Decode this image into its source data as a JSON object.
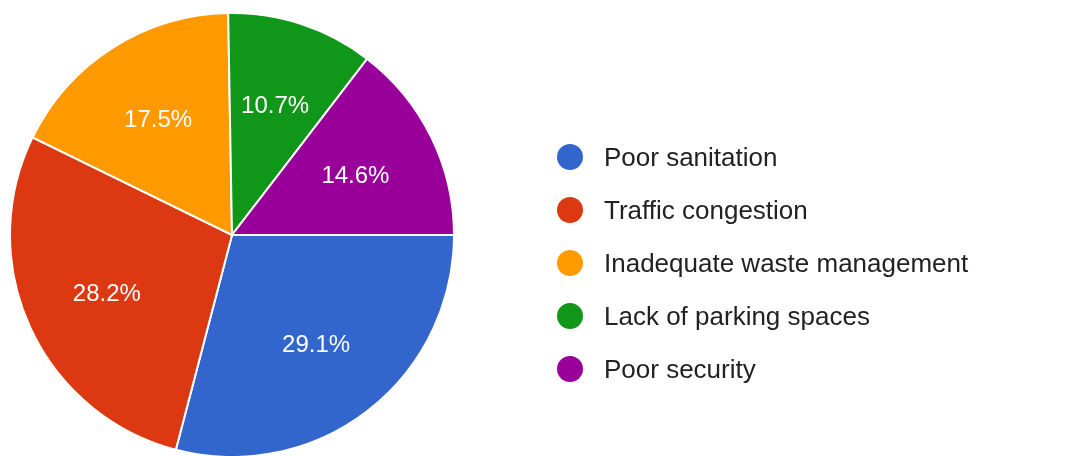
{
  "chart_data": {
    "type": "pie",
    "categories": [
      "Poor sanitation",
      "Traffic congestion",
      "Inadequate waste management",
      "Lack of parking spaces",
      "Poor security"
    ],
    "values": [
      29.1,
      28.2,
      17.5,
      10.7,
      14.6
    ],
    "colors": [
      "#3366cc",
      "#dc3912",
      "#ff9900",
      "#109618",
      "#990099"
    ],
    "value_labels": [
      "29.1%",
      "28.2%",
      "17.5%",
      "10.7%",
      "14.6%"
    ],
    "legend": "right"
  }
}
